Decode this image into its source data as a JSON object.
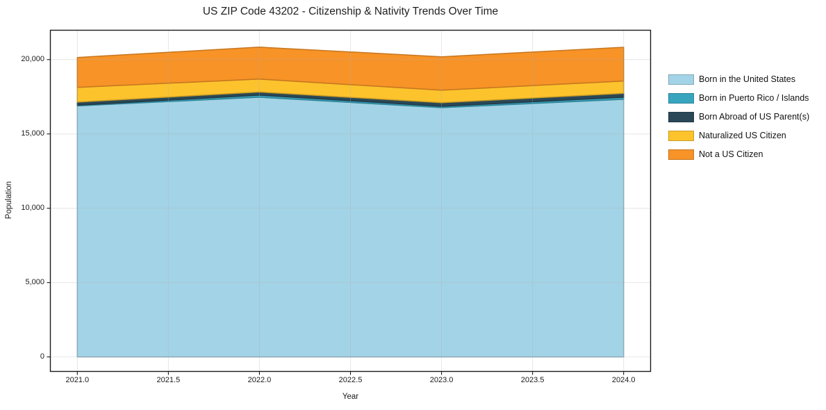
{
  "figure": {
    "title": "US ZIP Code 43202 - Citizenship & Nativity Trends Over Time",
    "xlabel": "Year",
    "ylabel": "Population",
    "background": "#ffffff"
  },
  "chart_data": {
    "type": "area",
    "stacked": true,
    "title": "US ZIP Code 43202 - Citizenship & Nativity Trends Over Time",
    "xlabel": "Year",
    "ylabel": "Population",
    "x": [
      2021,
      2022,
      2023,
      2024
    ],
    "series": [
      {
        "name": "Born in the United States",
        "color": "#a3d3e6",
        "values": [
          16885,
          17470,
          16770,
          17330
        ]
      },
      {
        "name": "Born in Puerto Rico / Islands",
        "color": "#38a5bf",
        "values": [
          50,
          140,
          90,
          140
        ]
      },
      {
        "name": "Born Abroad of US Parent(s)",
        "color": "#2a4857",
        "values": [
          210,
          210,
          240,
          260
        ]
      },
      {
        "name": "Naturalized US Citizen",
        "color": "#fcc32d",
        "values": [
          990,
          870,
          840,
          830
        ]
      },
      {
        "name": "Not a US Citizen",
        "color": "#f79327",
        "values": [
          2010,
          2150,
          2250,
          2270
        ]
      }
    ],
    "stack_totals": [
      20145,
      20840,
      20190,
      20830
    ],
    "xlim": [
      2020.85,
      2024.15
    ],
    "ylim": [
      -1000,
      22000
    ],
    "x_ticks": [
      {
        "v": 2021.0,
        "label": "2021.0"
      },
      {
        "v": 2021.5,
        "label": "2021.5"
      },
      {
        "v": 2022.0,
        "label": "2022.0"
      },
      {
        "v": 2022.5,
        "label": "2022.5"
      },
      {
        "v": 2023.0,
        "label": "2023.0"
      },
      {
        "v": 2023.5,
        "label": "2023.5"
      },
      {
        "v": 2024.0,
        "label": "2024.0"
      }
    ],
    "y_ticks": [
      {
        "v": 0,
        "label": "0"
      },
      {
        "v": 5000,
        "label": "5,000"
      },
      {
        "v": 10000,
        "label": "10,000"
      },
      {
        "v": 15000,
        "label": "15,000"
      },
      {
        "v": 20000,
        "label": "20,000"
      }
    ],
    "grid": true,
    "grid_color": "#b0b0b0",
    "grid_opacity": 0.3,
    "frame_color": "#1a1a1a",
    "legend_position": "right-outside"
  }
}
